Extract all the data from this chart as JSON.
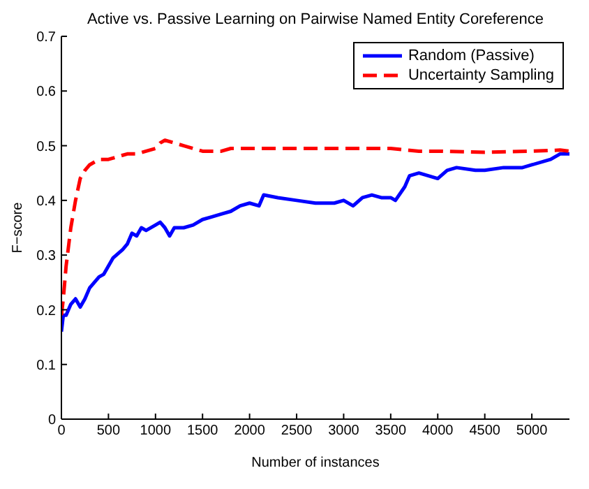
{
  "chart_data": {
    "type": "line",
    "title": "Active vs. Passive Learning on Pairwise Named Entity Coreference",
    "xlabel": "Number of instances",
    "ylabel": "F−score",
    "xlim": [
      0,
      5400
    ],
    "xticks": [
      0,
      500,
      1000,
      1500,
      2000,
      2500,
      3000,
      3500,
      4000,
      4500,
      5000
    ],
    "ylim": [
      0,
      0.7
    ],
    "yticks": [
      0,
      0.1,
      0.2,
      0.3,
      0.4,
      0.5,
      0.6,
      0.7
    ],
    "legend": "top right",
    "marker": "none",
    "series": [
      {
        "name": "Random (Passive)",
        "color": "#0000ff",
        "line_style": "solid",
        "x": [
          0,
          20,
          50,
          100,
          150,
          200,
          250,
          300,
          400,
          450,
          500,
          550,
          650,
          700,
          750,
          800,
          850,
          900,
          1000,
          1050,
          1100,
          1150,
          1200,
          1300,
          1400,
          1500,
          1600,
          1700,
          1800,
          1900,
          2000,
          2100,
          2150,
          2300,
          2500,
          2700,
          2900,
          3000,
          3100,
          3200,
          3300,
          3400,
          3500,
          3550,
          3650,
          3700,
          3800,
          3900,
          4000,
          4100,
          4200,
          4400,
          4500,
          4700,
          4900,
          5000,
          5200,
          5300,
          5400
        ],
        "values": [
          0.16,
          0.19,
          0.19,
          0.21,
          0.22,
          0.205,
          0.22,
          0.24,
          0.26,
          0.265,
          0.28,
          0.295,
          0.31,
          0.32,
          0.34,
          0.335,
          0.35,
          0.345,
          0.355,
          0.36,
          0.35,
          0.335,
          0.35,
          0.35,
          0.355,
          0.365,
          0.37,
          0.375,
          0.38,
          0.39,
          0.395,
          0.39,
          0.41,
          0.405,
          0.4,
          0.395,
          0.395,
          0.4,
          0.39,
          0.405,
          0.41,
          0.405,
          0.405,
          0.4,
          0.425,
          0.445,
          0.45,
          0.445,
          0.44,
          0.455,
          0.46,
          0.455,
          0.455,
          0.46,
          0.46,
          0.465,
          0.475,
          0.485,
          0.485
        ]
      },
      {
        "name": "Uncertainty Sampling",
        "color": "#ff0000",
        "line_style": "dashed",
        "x": [
          0,
          20,
          50,
          100,
          150,
          200,
          250,
          300,
          400,
          500,
          600,
          700,
          800,
          900,
          1000,
          1050,
          1100,
          1200,
          1300,
          1400,
          1500,
          1700,
          1800,
          2000,
          2500,
          3000,
          3500,
          3800,
          4000,
          4500,
          5000,
          5300,
          5400
        ],
        "values": [
          0.19,
          0.22,
          0.28,
          0.35,
          0.4,
          0.44,
          0.455,
          0.465,
          0.475,
          0.475,
          0.48,
          0.485,
          0.485,
          0.49,
          0.495,
          0.505,
          0.51,
          0.505,
          0.5,
          0.495,
          0.49,
          0.49,
          0.495,
          0.495,
          0.495,
          0.495,
          0.495,
          0.49,
          0.49,
          0.488,
          0.49,
          0.492,
          0.49
        ]
      }
    ]
  }
}
